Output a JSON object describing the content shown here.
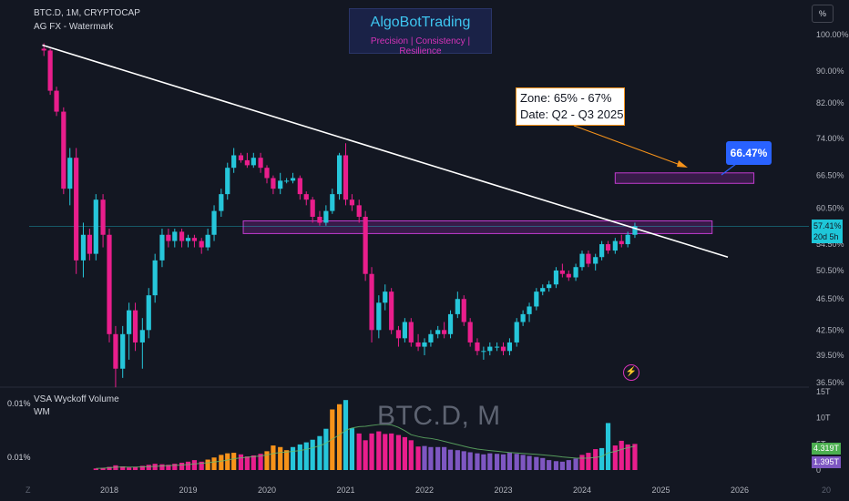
{
  "header": {
    "symbol_line": "BTC.D, 1M, CRYPTOCAP",
    "indicator_line": "AG FX - Watermark"
  },
  "brand": {
    "title": "AlgoBotTrading",
    "subtitle": "Precision  | Consistency | Resilience"
  },
  "annotation": {
    "zone_line": "Zone: 65% - 67%",
    "date_line": "Date: Q2 - Q3 2025",
    "target_label": "66.47%"
  },
  "ui": {
    "percent_button": "%",
    "price_tag_value": "57.41%",
    "price_tag_countdown": "20d 5h",
    "watermark": "BTC.D, M",
    "corner_left": "Z",
    "corner_right": "20"
  },
  "volume_panel": {
    "title": "VSA Wyckoff Volume",
    "subtitle": "WM",
    "left_label_top": "0.01%",
    "left_label_bottom": "0.01%",
    "tag_green": "4.319T",
    "tag_purple": "1.395T",
    "tag_green_color": "#4caf50",
    "tag_purple_color": "#7e57c2"
  },
  "chart_data": {
    "type": "candlestick",
    "price_axis": {
      "ticks": [
        "100.00%",
        "90.00%",
        "82.00%",
        "74.00%",
        "66.50%",
        "60.50%",
        "54.50%",
        "50.50%",
        "46.50%",
        "42.50%",
        "39.50%",
        "36.50%"
      ],
      "tick_values": [
        100,
        90,
        82,
        74,
        66.5,
        60.5,
        54.5,
        50.5,
        46.5,
        42.5,
        39.5,
        36.5
      ],
      "scale": "log"
    },
    "volume_axis": {
      "ticks": [
        "15T",
        "10T",
        "5T",
        "0"
      ],
      "tick_values": [
        15,
        10,
        5,
        0
      ]
    },
    "time_axis": {
      "ticks": [
        "2018",
        "2019",
        "2020",
        "2021",
        "2022",
        "2023",
        "2024",
        "2025",
        "2026"
      ],
      "tick_values": [
        2018,
        2019,
        2020,
        2021,
        2022,
        2023,
        2024,
        2025,
        2026
      ]
    },
    "candle_colors": {
      "up": "#26c6da",
      "down": "#e91e8c"
    },
    "candles": [
      {
        "t": 2017.17,
        "o": 96.0,
        "h": 97.5,
        "l": 94.0,
        "c": 95.5
      },
      {
        "t": 2017.25,
        "o": 95.5,
        "h": 96.0,
        "l": 84.0,
        "c": 85.0
      },
      {
        "t": 2017.33,
        "o": 85.0,
        "h": 86.0,
        "l": 79.0,
        "c": 80.0
      },
      {
        "t": 2017.42,
        "o": 80.0,
        "h": 81.0,
        "l": 63.0,
        "c": 64.0
      },
      {
        "t": 2017.5,
        "o": 64.0,
        "h": 72.0,
        "l": 61.0,
        "c": 70.0
      },
      {
        "t": 2017.58,
        "o": 70.0,
        "h": 72.0,
        "l": 50.0,
        "c": 52.0
      },
      {
        "t": 2017.67,
        "o": 52.0,
        "h": 58.0,
        "l": 49.5,
        "c": 56.0
      },
      {
        "t": 2017.75,
        "o": 56.0,
        "h": 57.0,
        "l": 52.0,
        "c": 53.0
      },
      {
        "t": 2017.83,
        "o": 53.0,
        "h": 63.0,
        "l": 52.0,
        "c": 62.0
      },
      {
        "t": 2017.92,
        "o": 62.0,
        "h": 63.0,
        "l": 54.0,
        "c": 56.0
      },
      {
        "t": 2018.0,
        "o": 56.0,
        "h": 57.0,
        "l": 41.0,
        "c": 42.0
      },
      {
        "t": 2018.08,
        "o": 42.0,
        "h": 43.0,
        "l": 36.0,
        "c": 38.0
      },
      {
        "t": 2018.17,
        "o": 38.0,
        "h": 43.0,
        "l": 37.0,
        "c": 42.0
      },
      {
        "t": 2018.25,
        "o": 42.0,
        "h": 46.0,
        "l": 39.0,
        "c": 45.0
      },
      {
        "t": 2018.33,
        "o": 45.0,
        "h": 46.0,
        "l": 40.0,
        "c": 41.0
      },
      {
        "t": 2018.42,
        "o": 41.0,
        "h": 44.0,
        "l": 38.0,
        "c": 42.5
      },
      {
        "t": 2018.5,
        "o": 42.5,
        "h": 48.0,
        "l": 41.5,
        "c": 47.0
      },
      {
        "t": 2018.58,
        "o": 47.0,
        "h": 53.0,
        "l": 46.0,
        "c": 52.0
      },
      {
        "t": 2018.67,
        "o": 52.0,
        "h": 57.0,
        "l": 51.0,
        "c": 56.0
      },
      {
        "t": 2018.75,
        "o": 56.0,
        "h": 57.0,
        "l": 54.0,
        "c": 55.0
      },
      {
        "t": 2018.83,
        "o": 55.0,
        "h": 57.0,
        "l": 54.0,
        "c": 56.5
      },
      {
        "t": 2018.92,
        "o": 56.5,
        "h": 57.0,
        "l": 54.0,
        "c": 55.0
      },
      {
        "t": 2019.0,
        "o": 55.0,
        "h": 56.0,
        "l": 54.0,
        "c": 55.5
      },
      {
        "t": 2019.08,
        "o": 55.5,
        "h": 56.0,
        "l": 54.0,
        "c": 55.0
      },
      {
        "t": 2019.17,
        "o": 55.0,
        "h": 55.5,
        "l": 53.0,
        "c": 54.0
      },
      {
        "t": 2019.25,
        "o": 54.0,
        "h": 57.0,
        "l": 53.5,
        "c": 56.0
      },
      {
        "t": 2019.33,
        "o": 56.0,
        "h": 61.0,
        "l": 55.0,
        "c": 60.0
      },
      {
        "t": 2019.42,
        "o": 60.0,
        "h": 64.0,
        "l": 59.0,
        "c": 63.0
      },
      {
        "t": 2019.5,
        "o": 63.0,
        "h": 69.0,
        "l": 62.0,
        "c": 68.0
      },
      {
        "t": 2019.58,
        "o": 68.0,
        "h": 72.0,
        "l": 67.0,
        "c": 70.5
      },
      {
        "t": 2019.67,
        "o": 70.5,
        "h": 71.0,
        "l": 69.0,
        "c": 69.5
      },
      {
        "t": 2019.75,
        "o": 69.5,
        "h": 71.0,
        "l": 68.0,
        "c": 68.5
      },
      {
        "t": 2019.83,
        "o": 68.5,
        "h": 71.0,
        "l": 68.0,
        "c": 70.0
      },
      {
        "t": 2019.92,
        "o": 70.0,
        "h": 71.0,
        "l": 67.0,
        "c": 68.0
      },
      {
        "t": 2020.0,
        "o": 68.0,
        "h": 68.5,
        "l": 65.0,
        "c": 66.0
      },
      {
        "t": 2020.08,
        "o": 66.0,
        "h": 66.5,
        "l": 63.0,
        "c": 64.0
      },
      {
        "t": 2020.17,
        "o": 64.0,
        "h": 67.0,
        "l": 63.0,
        "c": 65.5
      },
      {
        "t": 2020.25,
        "o": 65.5,
        "h": 66.0,
        "l": 65.0,
        "c": 65.5
      },
      {
        "t": 2020.33,
        "o": 65.5,
        "h": 67.0,
        "l": 65.0,
        "c": 66.0
      },
      {
        "t": 2020.42,
        "o": 66.0,
        "h": 66.5,
        "l": 62.0,
        "c": 63.0
      },
      {
        "t": 2020.5,
        "o": 63.0,
        "h": 63.5,
        "l": 61.0,
        "c": 62.0
      },
      {
        "t": 2020.58,
        "o": 62.0,
        "h": 62.5,
        "l": 58.0,
        "c": 59.0
      },
      {
        "t": 2020.67,
        "o": 59.0,
        "h": 60.0,
        "l": 57.5,
        "c": 58.0
      },
      {
        "t": 2020.75,
        "o": 58.0,
        "h": 61.0,
        "l": 57.5,
        "c": 60.0
      },
      {
        "t": 2020.83,
        "o": 60.0,
        "h": 64.0,
        "l": 59.5,
        "c": 63.0
      },
      {
        "t": 2020.92,
        "o": 63.0,
        "h": 71.0,
        "l": 62.0,
        "c": 70.5
      },
      {
        "t": 2021.0,
        "o": 70.5,
        "h": 73.0,
        "l": 61.0,
        "c": 62.0
      },
      {
        "t": 2021.08,
        "o": 62.0,
        "h": 63.0,
        "l": 60.0,
        "c": 61.0
      },
      {
        "t": 2021.17,
        "o": 61.0,
        "h": 62.0,
        "l": 58.0,
        "c": 59.0
      },
      {
        "t": 2021.25,
        "o": 59.0,
        "h": 60.0,
        "l": 49.0,
        "c": 50.0
      },
      {
        "t": 2021.33,
        "o": 50.0,
        "h": 51.0,
        "l": 41.0,
        "c": 42.5
      },
      {
        "t": 2021.42,
        "o": 42.5,
        "h": 47.0,
        "l": 41.5,
        "c": 46.0
      },
      {
        "t": 2021.5,
        "o": 46.0,
        "h": 48.5,
        "l": 45.0,
        "c": 47.5
      },
      {
        "t": 2021.58,
        "o": 47.5,
        "h": 48.0,
        "l": 42.0,
        "c": 42.5
      },
      {
        "t": 2021.67,
        "o": 42.5,
        "h": 43.0,
        "l": 40.5,
        "c": 41.5
      },
      {
        "t": 2021.75,
        "o": 41.5,
        "h": 44.0,
        "l": 41.0,
        "c": 43.5
      },
      {
        "t": 2021.83,
        "o": 43.5,
        "h": 44.0,
        "l": 40.5,
        "c": 41.0
      },
      {
        "t": 2021.92,
        "o": 41.0,
        "h": 42.0,
        "l": 40.0,
        "c": 40.5
      },
      {
        "t": 2022.0,
        "o": 40.5,
        "h": 41.5,
        "l": 39.5,
        "c": 41.0
      },
      {
        "t": 2022.08,
        "o": 41.0,
        "h": 42.5,
        "l": 40.5,
        "c": 42.0
      },
      {
        "t": 2022.17,
        "o": 42.0,
        "h": 43.0,
        "l": 41.5,
        "c": 42.5
      },
      {
        "t": 2022.25,
        "o": 42.5,
        "h": 43.5,
        "l": 41.5,
        "c": 42.0
      },
      {
        "t": 2022.33,
        "o": 42.0,
        "h": 45.0,
        "l": 41.5,
        "c": 44.5
      },
      {
        "t": 2022.42,
        "o": 44.5,
        "h": 47.5,
        "l": 44.0,
        "c": 46.5
      },
      {
        "t": 2022.5,
        "o": 46.5,
        "h": 47.0,
        "l": 43.0,
        "c": 43.5
      },
      {
        "t": 2022.58,
        "o": 43.5,
        "h": 44.0,
        "l": 40.5,
        "c": 41.0
      },
      {
        "t": 2022.67,
        "o": 41.0,
        "h": 41.5,
        "l": 39.5,
        "c": 40.0
      },
      {
        "t": 2022.75,
        "o": 40.0,
        "h": 40.5,
        "l": 39.0,
        "c": 40.0
      },
      {
        "t": 2022.83,
        "o": 40.0,
        "h": 41.0,
        "l": 39.5,
        "c": 40.5
      },
      {
        "t": 2022.92,
        "o": 40.5,
        "h": 41.0,
        "l": 40.0,
        "c": 40.5
      },
      {
        "t": 2023.0,
        "o": 40.5,
        "h": 41.0,
        "l": 39.5,
        "c": 40.0
      },
      {
        "t": 2023.08,
        "o": 40.0,
        "h": 41.5,
        "l": 39.5,
        "c": 41.0
      },
      {
        "t": 2023.17,
        "o": 41.0,
        "h": 44.0,
        "l": 40.5,
        "c": 43.5
      },
      {
        "t": 2023.25,
        "o": 43.5,
        "h": 45.0,
        "l": 43.0,
        "c": 44.5
      },
      {
        "t": 2023.33,
        "o": 44.5,
        "h": 46.0,
        "l": 43.5,
        "c": 45.5
      },
      {
        "t": 2023.42,
        "o": 45.5,
        "h": 48.0,
        "l": 45.0,
        "c": 47.5
      },
      {
        "t": 2023.5,
        "o": 47.5,
        "h": 48.5,
        "l": 47.0,
        "c": 48.0
      },
      {
        "t": 2023.58,
        "o": 48.0,
        "h": 49.0,
        "l": 47.5,
        "c": 48.5
      },
      {
        "t": 2023.67,
        "o": 48.5,
        "h": 51.0,
        "l": 48.0,
        "c": 50.5
      },
      {
        "t": 2023.75,
        "o": 50.5,
        "h": 51.5,
        "l": 49.5,
        "c": 50.0
      },
      {
        "t": 2023.83,
        "o": 50.0,
        "h": 50.5,
        "l": 49.0,
        "c": 49.5
      },
      {
        "t": 2023.92,
        "o": 49.5,
        "h": 51.5,
        "l": 49.0,
        "c": 51.0
      },
      {
        "t": 2024.0,
        "o": 51.0,
        "h": 53.5,
        "l": 50.5,
        "c": 53.0
      },
      {
        "t": 2024.08,
        "o": 53.0,
        "h": 53.5,
        "l": 51.0,
        "c": 51.5
      },
      {
        "t": 2024.17,
        "o": 51.5,
        "h": 53.0,
        "l": 50.5,
        "c": 52.5
      },
      {
        "t": 2024.25,
        "o": 52.5,
        "h": 55.0,
        "l": 52.0,
        "c": 54.5
      },
      {
        "t": 2024.33,
        "o": 54.5,
        "h": 55.0,
        "l": 53.0,
        "c": 53.5
      },
      {
        "t": 2024.42,
        "o": 53.5,
        "h": 55.5,
        "l": 53.0,
        "c": 55.0
      },
      {
        "t": 2024.5,
        "o": 55.0,
        "h": 56.0,
        "l": 54.0,
        "c": 54.5
      },
      {
        "t": 2024.58,
        "o": 54.5,
        "h": 56.5,
        "l": 54.0,
        "c": 56.0
      },
      {
        "t": 2024.67,
        "o": 56.0,
        "h": 58.0,
        "l": 55.5,
        "c": 57.41
      }
    ],
    "volume_series": [
      {
        "name": "volume",
        "t": [
          2017.83,
          2017.92,
          2018.0,
          2018.08,
          2018.17,
          2018.25,
          2018.33,
          2018.42,
          2018.5,
          2018.58,
          2018.67,
          2018.75,
          2018.83,
          2018.92,
          2019.0,
          2019.08,
          2019.17,
          2019.25,
          2019.33,
          2019.42,
          2019.5,
          2019.58,
          2019.67,
          2019.75,
          2019.83,
          2019.92,
          2020.0,
          2020.08,
          2020.17,
          2020.25,
          2020.33,
          2020.42,
          2020.5,
          2020.58,
          2020.67,
          2020.75,
          2020.83,
          2020.92,
          2021.0,
          2021.08,
          2021.17,
          2021.25,
          2021.33,
          2021.42,
          2021.5,
          2021.58,
          2021.67,
          2021.75,
          2021.83,
          2021.92,
          2022.0,
          2022.08,
          2022.17,
          2022.25,
          2022.33,
          2022.42,
          2022.5,
          2022.58,
          2022.67,
          2022.75,
          2022.83,
          2022.92,
          2023.0,
          2023.08,
          2023.17,
          2023.25,
          2023.33,
          2023.42,
          2023.5,
          2023.58,
          2023.67,
          2023.75,
          2023.83,
          2023.92,
          2024.0,
          2024.08,
          2024.17,
          2024.25,
          2024.33,
          2024.42,
          2024.5,
          2024.58,
          2024.67
        ],
        "values": [
          0.3,
          0.4,
          0.6,
          0.9,
          0.7,
          0.5,
          0.6,
          0.8,
          1.0,
          1.2,
          1.1,
          1.0,
          1.2,
          1.4,
          1.6,
          1.9,
          1.6,
          2.0,
          2.4,
          2.9,
          3.2,
          3.3,
          3.0,
          2.6,
          2.8,
          3.1,
          3.6,
          4.7,
          4.4,
          3.8,
          4.4,
          4.9,
          5.3,
          5.8,
          6.5,
          7.9,
          11.6,
          12.6,
          13.4,
          8.0,
          7.0,
          5.7,
          7.0,
          7.4,
          6.9,
          7.0,
          6.7,
          6.3,
          5.7,
          4.5,
          4.6,
          4.4,
          4.4,
          4.4,
          3.9,
          3.8,
          3.6,
          3.4,
          3.2,
          3.0,
          3.2,
          3.1,
          3.0,
          3.3,
          3.1,
          2.9,
          2.7,
          2.5,
          2.3,
          1.9,
          1.7,
          1.6,
          1.9,
          2.2,
          2.9,
          3.3,
          4.0,
          4.2,
          9.0,
          4.7,
          5.6,
          4.9,
          5.0
        ]
      }
    ],
    "trendline": {
      "t1": 2017.15,
      "v1": 97.0,
      "t2": 2025.85,
      "v2": 52.5
    },
    "horizontal_line": {
      "value": 57.41
    },
    "zones": [
      {
        "t1": 2019.7,
        "t2": 2025.65,
        "v1": 56.2,
        "v2": 58.3
      },
      {
        "t1": 2024.42,
        "t2": 2026.18,
        "v1": 65.0,
        "v2": 67.0
      }
    ],
    "grid": false
  }
}
